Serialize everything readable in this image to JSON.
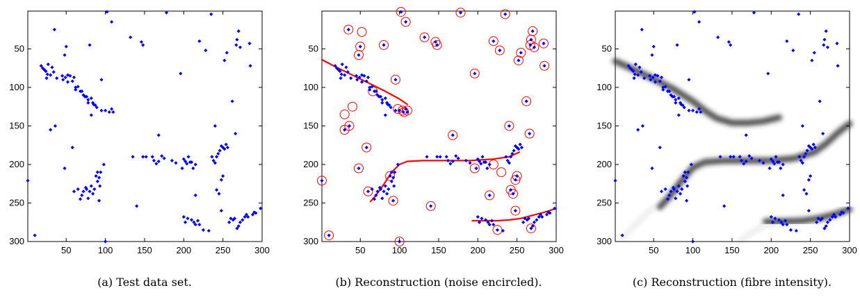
{
  "chart_data": [
    {
      "type": "scatter",
      "caption": "(a) Test data set.",
      "xlim": [
        1,
        300
      ],
      "ylim": [
        1,
        300
      ],
      "y_reversed": true,
      "xticks": [
        50,
        100,
        150,
        200,
        250,
        300
      ],
      "yticks": [
        50,
        100,
        150,
        200,
        250,
        300
      ],
      "marker_color": "#0000ff",
      "series": [
        {
          "layer": "data-points"
        }
      ]
    },
    {
      "type": "scatter",
      "caption": "(b) Reconstruction (noise encircled).",
      "xlim": [
        1,
        300
      ],
      "ylim": [
        1,
        300
      ],
      "y_reversed": true,
      "xticks": [
        50,
        100,
        150,
        200,
        250,
        300
      ],
      "yticks": [
        50,
        100,
        150,
        200,
        250,
        300
      ],
      "marker_color": "#0000ff",
      "curve_color": "#ff0000",
      "noise_circle_color": "#ff0000",
      "curves": [
        [
          [
            1,
            64
          ],
          [
            20,
            74
          ],
          [
            40,
            84
          ],
          [
            60,
            94
          ],
          [
            80,
            104
          ],
          [
            100,
            115
          ],
          [
            110,
            122
          ]
        ],
        [
          [
            63,
            248
          ],
          [
            70,
            240
          ],
          [
            80,
            226
          ],
          [
            90,
            210
          ],
          [
            100,
            200
          ],
          [
            110,
            196
          ],
          [
            130,
            195
          ],
          [
            160,
            195
          ],
          [
            190,
            195
          ],
          [
            220,
            193
          ],
          [
            240,
            190
          ],
          [
            253,
            184
          ]
        ],
        [
          [
            193,
            273
          ],
          [
            210,
            273
          ],
          [
            225,
            273
          ],
          [
            240,
            272
          ],
          [
            255,
            270
          ],
          [
            270,
            266
          ],
          [
            285,
            262
          ],
          [
            300,
            257
          ]
        ]
      ]
    },
    {
      "type": "scatter",
      "caption": "(c) Reconstruction (fibre intensity).",
      "xlim": [
        1,
        300
      ],
      "ylim": [
        1,
        300
      ],
      "y_reversed": true,
      "xticks": [
        50,
        100,
        150,
        200,
        250,
        300
      ],
      "yticks": [
        50,
        100,
        150,
        200,
        250,
        300
      ],
      "marker_color": "#0000ff",
      "intensity_color": "#333333",
      "intensity_curves": [
        [
          [
            1,
            66
          ],
          [
            25,
            77
          ],
          [
            50,
            89
          ],
          [
            75,
            102
          ],
          [
            100,
            118
          ],
          [
            115,
            130
          ],
          [
            130,
            140
          ],
          [
            150,
            146
          ],
          [
            170,
            146
          ],
          [
            190,
            144
          ],
          [
            210,
            139
          ]
        ],
        [
          [
            58,
            255
          ],
          [
            70,
            242
          ],
          [
            85,
            222
          ],
          [
            100,
            204
          ],
          [
            115,
            197
          ],
          [
            140,
            195
          ],
          [
            170,
            195
          ],
          [
            200,
            195
          ],
          [
            230,
            192
          ],
          [
            255,
            184
          ],
          [
            270,
            173
          ],
          [
            285,
            159
          ],
          [
            300,
            147
          ]
        ],
        [
          [
            193,
            274
          ],
          [
            215,
            274
          ],
          [
            240,
            273
          ],
          [
            260,
            270
          ],
          [
            280,
            265
          ],
          [
            300,
            258
          ]
        ],
        [
          [
            160,
            300
          ],
          [
            175,
            288
          ],
          [
            195,
            278
          ],
          [
            220,
            274
          ]
        ],
        [
          [
            10,
            295
          ],
          [
            30,
            275
          ],
          [
            50,
            255
          ]
        ]
      ]
    }
  ],
  "points": [
    [
      1,
      221
    ],
    [
      10,
      292
    ],
    [
      18,
      72
    ],
    [
      20,
      75
    ],
    [
      22,
      77
    ],
    [
      24,
      79
    ],
    [
      26,
      83
    ],
    [
      27,
      70
    ],
    [
      25,
      88
    ],
    [
      30,
      84
    ],
    [
      32,
      74
    ],
    [
      34,
      80
    ],
    [
      35,
      25
    ],
    [
      38,
      88
    ],
    [
      30,
      155
    ],
    [
      36,
      150
    ],
    [
      45,
      85
    ],
    [
      46,
      90
    ],
    [
      48,
      58
    ],
    [
      49,
      87
    ],
    [
      52,
      93
    ],
    [
      50,
      47
    ],
    [
      52,
      84
    ],
    [
      55,
      85
    ],
    [
      58,
      92
    ],
    [
      60,
      87
    ],
    [
      62,
      100
    ],
    [
      48,
      205
    ],
    [
      58,
      178
    ],
    [
      60,
      235
    ],
    [
      62,
      103
    ],
    [
      65,
      99
    ],
    [
      68,
      105
    ],
    [
      70,
      105
    ],
    [
      72,
      110
    ],
    [
      74,
      112
    ],
    [
      76,
      112
    ],
    [
      78,
      120
    ],
    [
      78,
      116
    ],
    [
      80,
      45
    ],
    [
      82,
      114
    ],
    [
      82,
      136
    ],
    [
      84,
      120
    ],
    [
      85,
      122
    ],
    [
      87,
      123
    ],
    [
      89,
      126
    ],
    [
      88,
      215
    ],
    [
      90,
      222
    ],
    [
      92,
      217
    ],
    [
      93,
      228
    ],
    [
      94,
      210
    ],
    [
      95,
      130
    ],
    [
      92,
      247
    ],
    [
      90,
      210
    ],
    [
      65,
      232
    ],
    [
      68,
      245
    ],
    [
      70,
      240
    ],
    [
      72,
      235
    ],
    [
      75,
      230
    ],
    [
      76,
      232
    ],
    [
      78,
      244
    ],
    [
      80,
      235
    ],
    [
      82,
      228
    ],
    [
      84,
      238
    ],
    [
      86,
      232
    ],
    [
      98,
      200
    ],
    [
      102,
      2
    ],
    [
      108,
      15
    ],
    [
      100,
      130
    ],
    [
      105,
      132
    ],
    [
      108,
      128
    ],
    [
      110,
      132
    ],
    [
      100,
      300
    ],
    [
      132,
      35
    ],
    [
      135,
      190
    ],
    [
      140,
      254
    ],
    [
      146,
      41
    ],
    [
      148,
      190
    ],
    [
      152,
      190
    ],
    [
      148,
      45
    ],
    [
      160,
      190
    ],
    [
      162,
      195
    ],
    [
      165,
      199
    ],
    [
      168,
      196
    ],
    [
      172,
      189
    ],
    [
      175,
      192
    ],
    [
      168,
      162
    ],
    [
      178,
      3
    ],
    [
      185,
      195
    ],
    [
      190,
      198
    ],
    [
      196,
      82
    ],
    [
      198,
      205
    ],
    [
      200,
      193
    ],
    [
      202,
      196
    ],
    [
      204,
      199
    ],
    [
      206,
      190
    ],
    [
      208,
      197
    ],
    [
      210,
      197
    ],
    [
      212,
      205
    ],
    [
      215,
      200
    ],
    [
      200,
      268
    ],
    [
      202,
      275
    ],
    [
      205,
      270
    ],
    [
      210,
      272
    ],
    [
      213,
      275
    ],
    [
      215,
      278
    ],
    [
      218,
      273
    ],
    [
      220,
      278
    ],
    [
      215,
      240
    ],
    [
      225,
      285
    ],
    [
      228,
      52
    ],
    [
      232,
      286
    ],
    [
      235,
      5
    ],
    [
      236,
      190
    ],
    [
      238,
      195
    ],
    [
      240,
      198
    ],
    [
      242,
      190
    ],
    [
      244,
      186
    ],
    [
      246,
      182
    ],
    [
      248,
      176
    ],
    [
      250,
      178
    ],
    [
      252,
      180
    ],
    [
      254,
      174
    ],
    [
      256,
      178
    ],
    [
      250,
      215
    ],
    [
      248,
      220
    ],
    [
      245,
      238
    ],
    [
      240,
      150
    ],
    [
      242,
      233
    ],
    [
      248,
      260
    ],
    [
      252,
      65
    ],
    [
      255,
      55
    ],
    [
      258,
      275
    ],
    [
      260,
      270
    ],
    [
      263,
      272
    ],
    [
      265,
      270
    ],
    [
      262,
      118
    ],
    [
      267,
      45
    ],
    [
      268,
      38
    ],
    [
      270,
      27
    ],
    [
      272,
      48
    ],
    [
      266,
      160
    ],
    [
      268,
      283
    ],
    [
      270,
      280
    ],
    [
      272,
      275
    ],
    [
      275,
      272
    ],
    [
      278,
      268
    ],
    [
      280,
      265
    ],
    [
      282,
      268
    ],
    [
      285,
      72
    ],
    [
      284,
      43
    ],
    [
      288,
      265
    ],
    [
      290,
      262
    ],
    [
      292,
      263
    ],
    [
      298,
      257
    ],
    [
      220,
      40
    ],
    [
      95,
      90
    ]
  ],
  "noise_points": [
    [
      1,
      221
    ],
    [
      10,
      292
    ],
    [
      35,
      25
    ],
    [
      30,
      155
    ],
    [
      36,
      150
    ],
    [
      48,
      58
    ],
    [
      50,
      47
    ],
    [
      48,
      205
    ],
    [
      58,
      178
    ],
    [
      60,
      235
    ],
    [
      80,
      45
    ],
    [
      88,
      215
    ],
    [
      92,
      247
    ],
    [
      95,
      90
    ],
    [
      102,
      2
    ],
    [
      108,
      15
    ],
    [
      100,
      300
    ],
    [
      132,
      35
    ],
    [
      140,
      254
    ],
    [
      146,
      41
    ],
    [
      148,
      45
    ],
    [
      168,
      162
    ],
    [
      178,
      3
    ],
    [
      196,
      82
    ],
    [
      215,
      240
    ],
    [
      225,
      285
    ],
    [
      228,
      52
    ],
    [
      235,
      5
    ],
    [
      240,
      150
    ],
    [
      242,
      233
    ],
    [
      245,
      238
    ],
    [
      250,
      215
    ],
    [
      248,
      220
    ],
    [
      248,
      260
    ],
    [
      252,
      65
    ],
    [
      255,
      55
    ],
    [
      262,
      118
    ],
    [
      267,
      45
    ],
    [
      268,
      38
    ],
    [
      270,
      27
    ],
    [
      272,
      48
    ],
    [
      266,
      160
    ],
    [
      268,
      283
    ],
    [
      285,
      72
    ],
    [
      284,
      43
    ],
    [
      220,
      40
    ],
    [
      30,
      135
    ],
    [
      40,
      125
    ],
    [
      52,
      28
    ],
    [
      66,
      105
    ],
    [
      98,
      128
    ],
    [
      104,
      130
    ],
    [
      106,
      132
    ],
    [
      110,
      130
    ],
    [
      196,
      205
    ],
    [
      220,
      200
    ],
    [
      230,
      210
    ]
  ]
}
